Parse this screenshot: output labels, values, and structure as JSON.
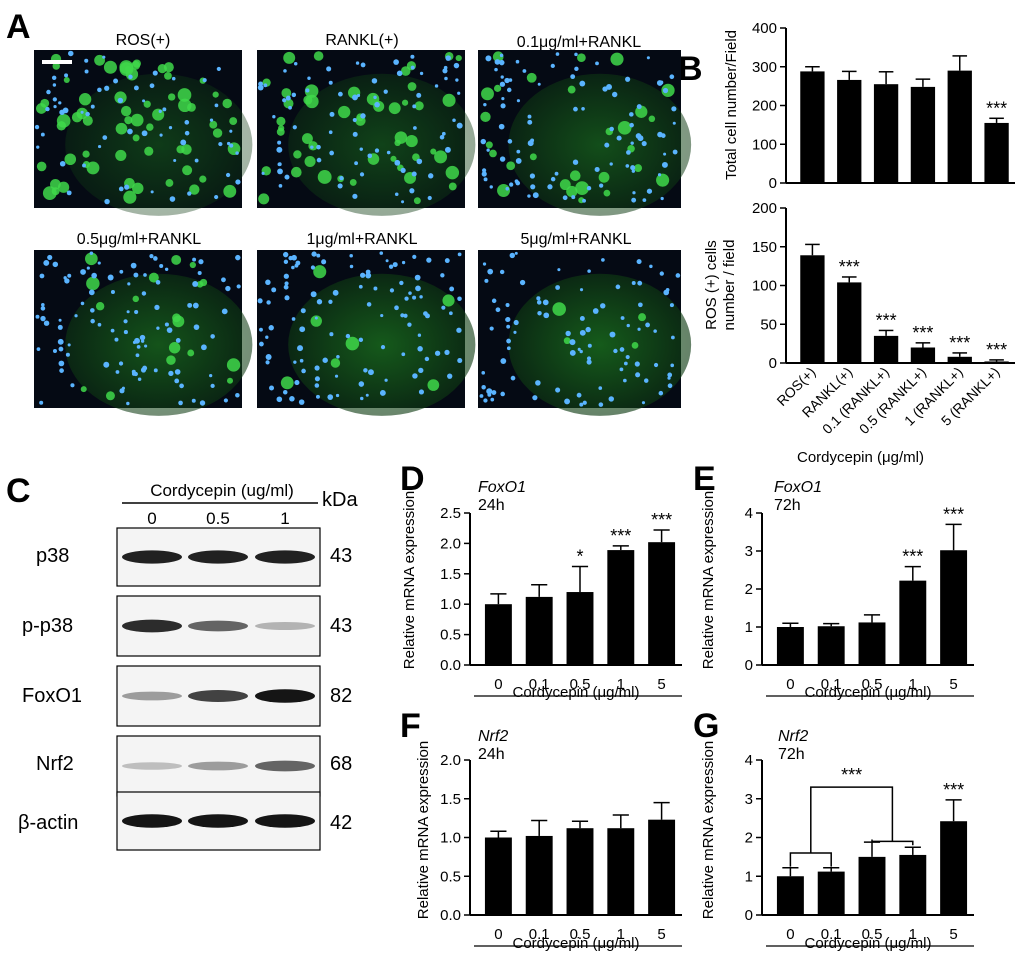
{
  "panel_letters": {
    "a": "A",
    "b": "B",
    "c": "C",
    "d": "D",
    "e": "E",
    "f": "F",
    "g": "G"
  },
  "micrographs": [
    {
      "label": "ROS(+)",
      "green_level": 0.9,
      "blue_level": 0.4
    },
    {
      "label": "RANKL(+)",
      "green_level": 0.7,
      "blue_level": 0.5
    },
    {
      "label": "0.1μg/ml+RANKL",
      "green_level": 0.4,
      "blue_level": 0.6
    },
    {
      "label": "0.5μg/ml+RANKL",
      "green_level": 0.25,
      "blue_level": 0.65
    },
    {
      "label": "1μg/ml+RANKL",
      "green_level": 0.1,
      "blue_level": 0.7
    },
    {
      "label": "5μg/ml+RANKL",
      "green_level": 0.05,
      "blue_level": 0.6
    }
  ],
  "western_blot": {
    "header": "Cordycepin (ug/ml)",
    "kda_label": "kDa",
    "lanes": [
      "0",
      "0.5",
      "1"
    ],
    "rows": [
      {
        "protein": "p38",
        "kda": "43",
        "intensity": [
          0.9,
          0.9,
          0.9
        ]
      },
      {
        "protein": "p-p38",
        "kda": "43",
        "intensity": [
          0.85,
          0.6,
          0.25
        ]
      },
      {
        "protein": "FoxO1",
        "kda": "82",
        "intensity": [
          0.35,
          0.75,
          0.95
        ]
      },
      {
        "protein": "Nrf2",
        "kda": "68",
        "intensity": [
          0.2,
          0.35,
          0.6
        ]
      },
      {
        "protein": "β-actin",
        "kda": "42",
        "intensity": [
          0.95,
          0.95,
          0.95
        ]
      }
    ]
  },
  "chart_data": [
    {
      "id": "B-top",
      "type": "bar",
      "categories": [
        "ROS(+)",
        "RANKL(+)",
        "0.1 (RANKL+)",
        "0.5 (RANKL+)",
        "1 (RANKL+)",
        "5 (RANKL+)"
      ],
      "values": [
        288,
        266,
        255,
        248,
        290,
        155
      ],
      "errors": [
        12,
        22,
        32,
        20,
        38,
        12
      ],
      "significance": [
        "",
        "",
        "",
        "",
        "",
        "***"
      ],
      "ylabel": "Total cell number/Field",
      "ylim": [
        0,
        400
      ],
      "yticks": [
        "0",
        "100",
        "200",
        "300",
        "400"
      ],
      "show_xticklabels": false
    },
    {
      "id": "B-bottom",
      "type": "bar",
      "categories": [
        "ROS(+)",
        "RANKL(+)",
        "0.1 (RANKL+)",
        "0.5 (RANKL+)",
        "1 (RANKL+)",
        "5 (RANKL+)"
      ],
      "values": [
        139,
        104,
        35,
        20,
        8,
        2
      ],
      "errors": [
        14,
        7,
        7,
        6,
        5,
        2
      ],
      "significance": [
        "",
        "***",
        "***",
        "***",
        "***",
        "***"
      ],
      "ylabel": "ROS (+) cells number / field",
      "xlabel": "Cordycepin (μg/ml)",
      "ylim": [
        0,
        200
      ],
      "yticks": [
        "0",
        "50",
        "100",
        "150",
        "200"
      ],
      "show_xticklabels": true
    },
    {
      "id": "D",
      "type": "bar",
      "gene": "FoxO1",
      "time": "24h",
      "categories": [
        "0",
        "0.1",
        "0.5",
        "1",
        "5"
      ],
      "values": [
        1.0,
        1.12,
        1.2,
        1.89,
        2.02
      ],
      "errors": [
        0.17,
        0.2,
        0.42,
        0.07,
        0.2
      ],
      "significance": [
        "",
        "",
        "*",
        "***",
        "***"
      ],
      "ylabel": "Relative mRNA expression",
      "xlabel": "Cordycepin (μg/ml)",
      "ylim": [
        0,
        2.5
      ],
      "yticks": [
        "0.0",
        "0.5",
        "1.0",
        "1.5",
        "2.0",
        "2.5"
      ]
    },
    {
      "id": "E",
      "type": "bar",
      "gene": "FoxO1",
      "time": "72h",
      "categories": [
        "0",
        "0.1",
        "0.5",
        "1",
        "5"
      ],
      "values": [
        1.0,
        1.02,
        1.12,
        2.22,
        3.02
      ],
      "errors": [
        0.1,
        0.07,
        0.2,
        0.37,
        0.68
      ],
      "significance": [
        "",
        "",
        "",
        "***",
        "***"
      ],
      "ylabel": "Relative mRNA expression",
      "xlabel": "Cordycepin (μg/ml)",
      "ylim": [
        0,
        4
      ],
      "yticks": [
        "0",
        "1",
        "2",
        "3",
        "4"
      ]
    },
    {
      "id": "F",
      "type": "bar",
      "gene": "Nrf2",
      "time": "24h",
      "categories": [
        "0",
        "0.1",
        "0.5",
        "1",
        "5"
      ],
      "values": [
        1.0,
        1.02,
        1.12,
        1.12,
        1.23
      ],
      "errors": [
        0.08,
        0.2,
        0.09,
        0.17,
        0.22
      ],
      "significance": [
        "",
        "",
        "",
        "",
        ""
      ],
      "ylabel": "Relative mRNA expression",
      "xlabel": "Cordycepin (μg/ml)",
      "ylim": [
        0,
        2.0
      ],
      "yticks": [
        "0.0",
        "0.5",
        "1.0",
        "1.5",
        "2.0"
      ]
    },
    {
      "id": "G",
      "type": "bar",
      "gene": "Nrf2",
      "time": "72h",
      "categories": [
        "0",
        "0.1",
        "0.5",
        "1",
        "5"
      ],
      "values": [
        1.0,
        1.12,
        1.5,
        1.55,
        2.42
      ],
      "errors": [
        0.22,
        0.1,
        0.38,
        0.2,
        0.55
      ],
      "significance": [
        "",
        "",
        "",
        "",
        "***"
      ],
      "bracket_label": "***",
      "ylabel": "Relative mRNA expression",
      "xlabel": "Cordycepin (μg/ml)",
      "ylim": [
        0,
        4
      ],
      "yticks": [
        "0",
        "1",
        "2",
        "3",
        "4"
      ]
    }
  ]
}
